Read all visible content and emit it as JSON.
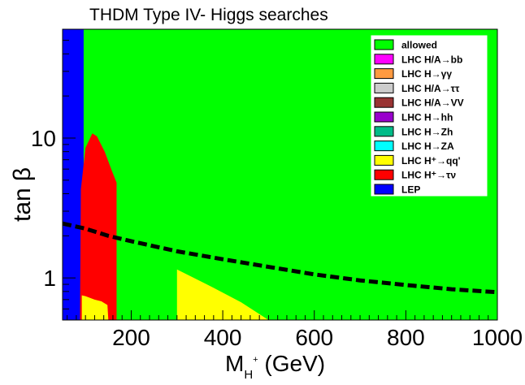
{
  "chart_data": {
    "type": "area",
    "title": "THDM Type IV- Higgs searches",
    "xlabel": "M_{H+} (GeV)",
    "xlabel_parts": {
      "main": "M",
      "sub": "H",
      "sup": "+",
      "unit": " (GeV)"
    },
    "ylabel": "tan β",
    "ylabel_parts": {
      "tan": "tan",
      "beta": "β"
    },
    "xlim": [
      50,
      1000
    ],
    "ylim": [
      0.5,
      60
    ],
    "yscale": "log",
    "x_ticks": [
      200,
      400,
      600,
      800,
      1000
    ],
    "x_tick_labels": [
      "200",
      "400",
      "600",
      "800",
      "1000"
    ],
    "y_ticks": [
      1,
      10
    ],
    "y_tick_labels": [
      "1",
      "10"
    ],
    "legend_position": "top-right",
    "legend": [
      {
        "key": "allowed",
        "label": "allowed",
        "color": "#00ff00"
      },
      {
        "key": "hbb",
        "label": "LHC H/A→bb",
        "color": "#ff00ff"
      },
      {
        "key": "hgg",
        "label": "LHC H→γγ",
        "color": "#ff9a40"
      },
      {
        "key": "htautau",
        "label": "LHC H/A→ττ",
        "color": "#cccccc"
      },
      {
        "key": "hvv",
        "label": "LHC H/A→VV",
        "color": "#993333"
      },
      {
        "key": "hhh",
        "label": "LHC H→hh",
        "color": "#9900cc"
      },
      {
        "key": "hzh",
        "label": "LHC H→Zh",
        "color": "#00bb88"
      },
      {
        "key": "hza",
        "label": "LHC H→ZA",
        "color": "#00ffff"
      },
      {
        "key": "hqq",
        "label": "LHC H⁺→qq'",
        "color": "#ffff00"
      },
      {
        "key": "htaunu",
        "label": "LHC H⁺→τν",
        "color": "#ff0000"
      },
      {
        "key": "lep",
        "label": "LEP",
        "color": "#0000ff"
      }
    ],
    "regions": [
      {
        "name": "LEP exclusion",
        "color": "#0000ff",
        "x_range": [
          50,
          96
        ],
        "y_range": [
          0.5,
          60
        ]
      },
      {
        "name": "LHC H+ tau nu exclusion",
        "color": "#ff0000",
        "boundary": [
          [
            88,
            0.5
          ],
          [
            90,
            4.3
          ],
          [
            100,
            8.5
          ],
          [
            115,
            10.8
          ],
          [
            125,
            10.3
          ],
          [
            142,
            8.0
          ],
          [
            158,
            5.8
          ],
          [
            168,
            4.8
          ],
          [
            168,
            0.5
          ]
        ]
      },
      {
        "name": "LHC H+ qq' exclusion (low mass)",
        "color": "#ffff00",
        "boundary": [
          [
            92,
            0.5
          ],
          [
            92,
            0.75
          ],
          [
            100,
            0.74
          ],
          [
            120,
            0.7
          ],
          [
            135,
            0.68
          ],
          [
            148,
            0.64
          ],
          [
            150,
            0.5
          ]
        ]
      },
      {
        "name": "LHC H+ qq' exclusion (high mass)",
        "color": "#ffff00",
        "boundary": [
          [
            300,
            0.5
          ],
          [
            300,
            1.15
          ],
          [
            380,
            0.85
          ],
          [
            440,
            0.67
          ],
          [
            500,
            0.5
          ]
        ]
      }
    ],
    "dashed_curve": {
      "color": "#000000",
      "x": [
        50,
        100,
        150,
        200,
        300,
        400,
        500,
        600,
        700,
        800,
        900,
        1000
      ],
      "y": [
        2.45,
        2.25,
        2.0,
        1.83,
        1.55,
        1.36,
        1.2,
        1.06,
        0.96,
        0.89,
        0.83,
        0.79
      ]
    }
  }
}
